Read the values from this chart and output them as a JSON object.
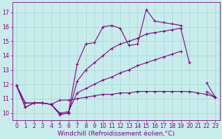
{
  "bg_color": "#c8ecec",
  "line_color": "#800080",
  "grid_color": "#a8d8d8",
  "xlabel": "Windchill (Refroidissement éolien,°C)",
  "xlabel_color": "#800080",
  "xlabel_fontsize": 6.5,
  "tick_color": "#800080",
  "tick_fontsize": 5.8,
  "xlim": [
    -0.5,
    23.5
  ],
  "ylim": [
    9.5,
    17.7
  ],
  "yticks": [
    10,
    11,
    12,
    13,
    14,
    15,
    16,
    17
  ],
  "xticks": [
    0,
    1,
    2,
    3,
    4,
    5,
    6,
    7,
    8,
    9,
    10,
    11,
    12,
    13,
    14,
    15,
    16,
    17,
    18,
    19,
    20,
    21,
    22,
    23
  ],
  "series": [
    {
      "x": [
        0,
        1,
        2,
        3,
        4,
        5,
        6,
        7,
        8,
        9,
        10,
        11,
        12,
        13,
        14,
        15,
        16,
        17,
        18,
        19,
        20,
        21,
        22,
        23
      ],
      "y": [
        11.9,
        10.4,
        10.7,
        10.7,
        10.6,
        10.9,
        10.9,
        11.0,
        11.1,
        11.2,
        11.3,
        11.3,
        11.4,
        11.4,
        11.5,
        11.5,
        11.5,
        11.5,
        11.5,
        11.5,
        11.5,
        11.4,
        11.3,
        11.1
      ]
    },
    {
      "x": [
        0,
        1,
        2,
        3,
        4,
        5,
        6,
        7,
        8,
        9,
        10,
        11,
        12,
        13,
        14,
        15,
        16,
        17,
        18,
        19,
        20,
        21,
        22,
        23
      ],
      "y": [
        11.9,
        10.7,
        10.7,
        10.7,
        10.6,
        10.0,
        10.1,
        11.4,
        11.7,
        12.0,
        12.3,
        12.5,
        12.8,
        13.0,
        13.3,
        13.5,
        13.7,
        13.9,
        14.1,
        14.3,
        null,
        null,
        null,
        11.1
      ]
    },
    {
      "x": [
        0,
        1,
        2,
        3,
        4,
        5,
        6,
        7,
        8,
        9,
        10,
        11,
        12,
        13,
        14,
        15,
        16,
        17,
        18,
        19,
        20,
        21,
        22,
        23
      ],
      "y": [
        11.9,
        10.4,
        10.7,
        10.7,
        10.6,
        9.9,
        10.0,
        13.4,
        14.8,
        14.9,
        16.0,
        16.1,
        15.9,
        14.7,
        14.8,
        17.2,
        16.4,
        16.3,
        16.2,
        16.1,
        null,
        null,
        11.5,
        11.1
      ]
    },
    {
      "x": [
        0,
        1,
        2,
        3,
        4,
        5,
        6,
        7,
        8,
        9,
        10,
        11,
        12,
        13,
        14,
        15,
        16,
        17,
        18,
        19,
        20,
        21,
        22,
        23
      ],
      "y": [
        11.9,
        10.7,
        10.7,
        10.7,
        10.6,
        9.9,
        10.0,
        12.2,
        13.0,
        13.5,
        14.0,
        14.5,
        14.8,
        15.0,
        15.2,
        15.5,
        15.6,
        15.7,
        15.8,
        15.9,
        13.5,
        null,
        12.1,
        11.1
      ]
    }
  ]
}
